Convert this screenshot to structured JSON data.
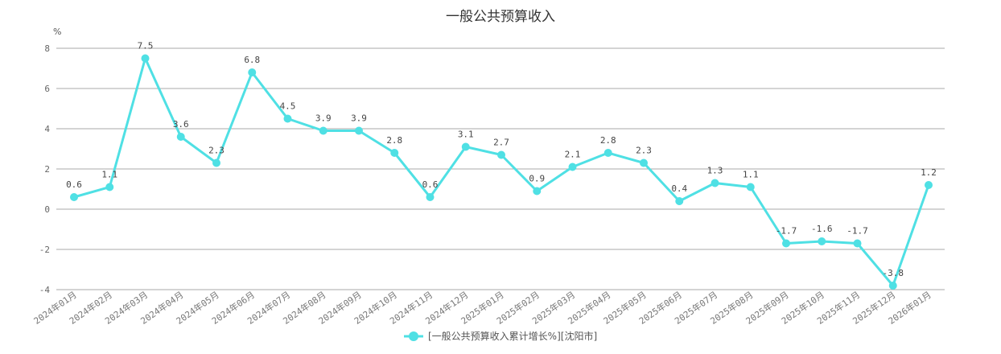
{
  "chart_data": {
    "type": "line",
    "title": "一般公共预算收入",
    "ylabel": "%",
    "ylim": [
      -4,
      8
    ],
    "yticks": [
      -4,
      -2,
      0,
      2,
      4,
      6,
      8
    ],
    "grid": true,
    "legend_position": "bottom",
    "color": "#4fe0e4",
    "categories": [
      "2024年01月",
      "2024年02月",
      "2024年03月",
      "2024年04月",
      "2024年05月",
      "2024年06月",
      "2024年07月",
      "2024年08月",
      "2024年09月",
      "2024年10月",
      "2024年11月",
      "2024年12月",
      "2025年01月",
      "2025年02月",
      "2025年03月",
      "2025年04月",
      "2025年05月",
      "2025年06月",
      "2025年07月",
      "2025年08月",
      "2025年09月",
      "2025年10月",
      "2025年11月",
      "2025年12月",
      "2026年01月"
    ],
    "series": [
      {
        "name": "[一般公共预算收入累计增长%][沈阳市]",
        "values": [
          0.6,
          1.1,
          7.5,
          3.6,
          2.3,
          6.8,
          4.5,
          3.9,
          3.9,
          2.8,
          0.6,
          3.1,
          2.7,
          0.9,
          2.1,
          2.8,
          2.3,
          0.4,
          1.3,
          1.1,
          -1.7,
          -1.6,
          -1.7,
          -3.8,
          1.2
        ],
        "labels": [
          "0.6",
          "1.1",
          "7.5",
          "3.6",
          "2.3",
          "6.8",
          "4.5",
          "3.9",
          "3.9",
          "2.8",
          "0.6",
          "3.1",
          "2.7",
          "0.9",
          "2.1",
          "2.8",
          "2.3",
          "0.4",
          "1.3",
          "1.1",
          "-1.7",
          "-1.6",
          "-1.7",
          "-3.8",
          "1.2"
        ]
      }
    ]
  }
}
